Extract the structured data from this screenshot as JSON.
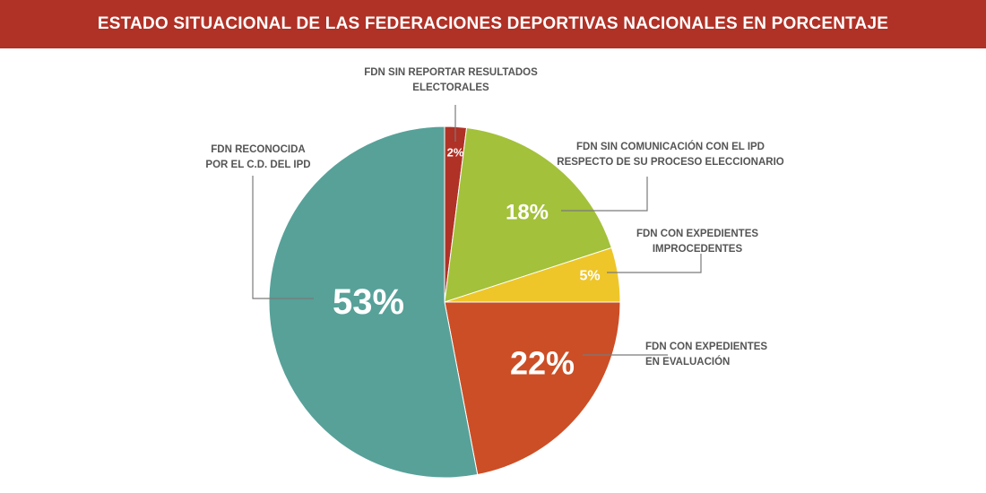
{
  "header": {
    "title": "ESTADO SITUACIONAL DE LAS FEDERACIONES DEPORTIVAS NACIONALES EN PORCENTAJE"
  },
  "chart_data": {
    "type": "pie",
    "title": "ESTADO SITUACIONAL DE LAS FEDERACIONES DEPORTIVAS NACIONALES EN PORCENTAJE",
    "slices": [
      {
        "label_lines": [
          "FDN SIN REPORTAR RESULTADOS",
          "ELECTORALES"
        ],
        "value": 2,
        "value_label": "2%",
        "color": "#b03126"
      },
      {
        "label_lines": [
          "FDN SIN COMUNICACIÓN CON EL IPD",
          "RESPECTO DE SU PROCESO ELECCIONARIO"
        ],
        "value": 18,
        "value_label": "18%",
        "color": "#a3c13a"
      },
      {
        "label_lines": [
          "FDN CON EXPEDIENTES",
          "IMPROCEDENTES"
        ],
        "value": 5,
        "value_label": "5%",
        "color": "#eec62a"
      },
      {
        "label_lines": [
          "FDN CON EXPEDIENTES",
          "EN EVALUACIÓN"
        ],
        "value": 22,
        "value_label": "22%",
        "color": "#cc4e26"
      },
      {
        "label_lines": [
          "FDN RECONOCIDA",
          "POR EL C.D. DEL IPD"
        ],
        "value": 53,
        "value_label": "53%",
        "color": "#57a199"
      }
    ]
  }
}
